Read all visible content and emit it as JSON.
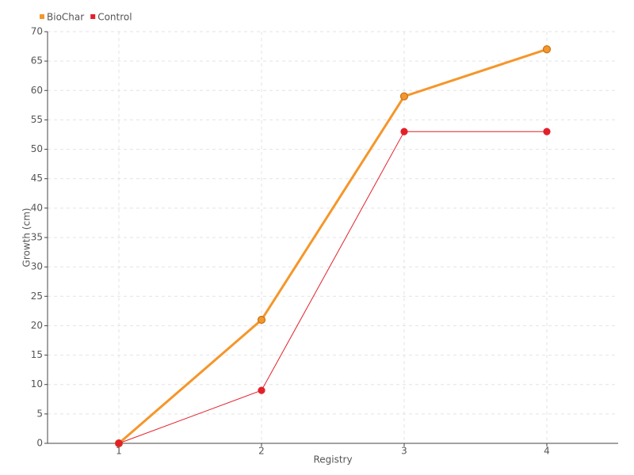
{
  "chart_data": {
    "type": "line",
    "x_label": "Registry",
    "y_label": "Growth (cm)",
    "x": [
      1,
      2,
      3,
      4
    ],
    "series": [
      {
        "name": "BioChar",
        "color": "#f5962a",
        "values": [
          0,
          21,
          59,
          67
        ]
      },
      {
        "name": "Control",
        "color": "#e3202a",
        "values": [
          0,
          9,
          53,
          53
        ]
      }
    ],
    "xlim": [
      0.5,
      4.5
    ],
    "xticks": [
      1,
      2,
      3,
      4
    ],
    "ylim": [
      0,
      70
    ],
    "yticks": [
      0,
      5,
      10,
      15,
      20,
      25,
      30,
      35,
      40,
      45,
      50,
      55,
      60,
      65,
      70
    ],
    "grid": true,
    "legend_position": "top-left"
  }
}
